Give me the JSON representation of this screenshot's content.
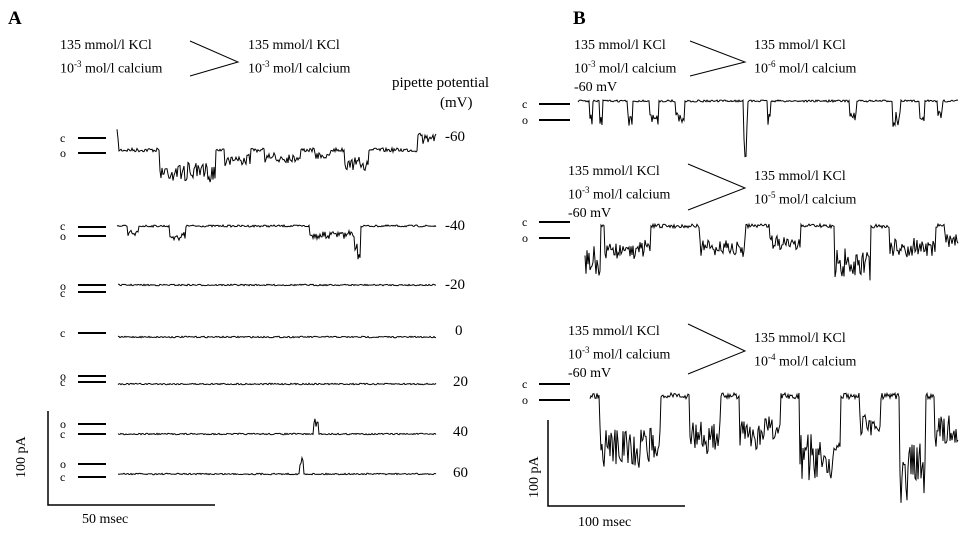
{
  "panelA": {
    "letter": "A",
    "pipette": {
      "line1": "135 mmol/l KCl",
      "line2": "10",
      "line2_exp": "-3",
      "line2_rest": " mol/l calcium"
    },
    "bath": {
      "line1": "135 mmol/l KCl",
      "line2": "10",
      "line2_exp": "-3",
      "line2_rest": " mol/l calcium"
    },
    "potential_header": [
      "pipette potential",
      "(mV)"
    ],
    "traces": [
      {
        "potential": "-60",
        "upper_label": "c",
        "lower_label": "o"
      },
      {
        "potential": "-40",
        "upper_label": "c",
        "lower_label": "o"
      },
      {
        "potential": "-20",
        "upper_label": "o",
        "lower_label": "c"
      },
      {
        "potential": "0",
        "upper_label": "c",
        "lower_label": ""
      },
      {
        "potential": "20",
        "upper_label": "o",
        "lower_label": "c"
      },
      {
        "potential": "40",
        "upper_label": "o",
        "lower_label": "c"
      },
      {
        "potential": "60",
        "upper_label": "o",
        "lower_label": "c"
      }
    ],
    "scale": {
      "current": "100 pA",
      "time": "50 msec"
    }
  },
  "panelB": {
    "letter": "B",
    "traces": [
      {
        "pipette1": "135 mmol/l KCl",
        "pipette2": "10",
        "pipette2_exp": "-3",
        "pipette2_rest": " mol/l calcium",
        "pipette3": "-60 mV",
        "bath1": "135 mmol/l KCl",
        "bath2": "10",
        "bath2_exp": "-6",
        "bath2_rest": " mol/l calcium",
        "upper_label": "c",
        "lower_label": "o"
      },
      {
        "pipette1": "135 mmol/l KCl",
        "pipette2": "10",
        "pipette2_exp": "-3",
        "pipette2_rest": " mol/l calcium",
        "pipette3": "-60 mV",
        "bath1": "135 mmol/l KCl",
        "bath2": "10",
        "bath2_exp": "-5",
        "bath2_rest": " mol/l calcium",
        "upper_label": "c",
        "lower_label": "o"
      },
      {
        "pipette1": "135 mmol/l KCl",
        "pipette2": "10",
        "pipette2_exp": "-3",
        "pipette2_rest": " mol/l calcium",
        "pipette3": "-60 mV",
        "bath1": "135 mmol/l KCl",
        "bath2": "10",
        "bath2_exp": "-4",
        "bath2_rest": " mol/l calcium",
        "upper_label": "c",
        "lower_label": "o"
      }
    ],
    "scale": {
      "current": "100 pA",
      "time": "100 msec"
    }
  }
}
